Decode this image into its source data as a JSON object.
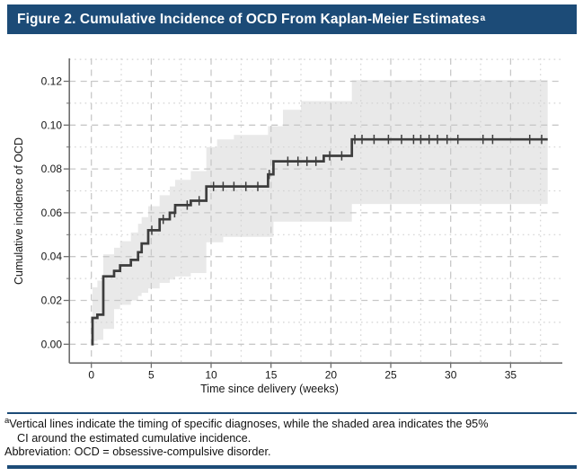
{
  "header": {
    "title": "Figure 2. Cumulative Incidence of OCD From Kaplan-Meier Estimates",
    "superscript": "a"
  },
  "colors": {
    "navy": "#1c4b77",
    "curve": "#3d3d3d",
    "band": "#e9e9e9",
    "grid_major": "#c8c8c8",
    "grid_minor": "#d3d3d3",
    "spine": "#6f6f6f",
    "tick_text": "#161616"
  },
  "chart_data": {
    "type": "line",
    "subtype": "kaplan-meier-step",
    "title": "Cumulative Incidence of OCD From Kaplan-Meier Estimates",
    "xlabel": "Time since delivery (weeks)",
    "ylabel": "Cumulative incidence of OCD",
    "xlim": [
      -1.8,
      39.3
    ],
    "ylim": [
      0,
      0.1305
    ],
    "grid": "dashed major, dotted minor",
    "x_ticks": [
      0,
      5,
      10,
      15,
      20,
      25,
      30,
      35
    ],
    "x_minor_ticks": [
      2.5,
      7.5,
      12.5,
      17.5,
      22.5,
      27.5,
      32.5,
      37.5
    ],
    "y_ticks": [
      0,
      0.02,
      0.04,
      0.06,
      0.08,
      0.1,
      0.12
    ],
    "y_tick_labels": [
      "0.00",
      "0.02",
      "0.04",
      "0.06",
      "0.08",
      "0.10",
      "0.12"
    ],
    "y_minor_ticks": [
      0.01,
      0.03,
      0.05,
      0.07,
      0.09,
      0.11,
      0.13
    ],
    "series": [
      {
        "name": "Kaplan-Meier cumulative incidence of OCD",
        "steps": [
          [
            0,
            0
          ],
          [
            0.1,
            0.012
          ],
          [
            0.5,
            0.0135
          ],
          [
            1,
            0.031
          ],
          [
            1.9,
            0.0335
          ],
          [
            2.4,
            0.036
          ],
          [
            3.3,
            0.0385
          ],
          [
            3.9,
            0.042
          ],
          [
            4.2,
            0.046
          ],
          [
            4.75,
            0.052
          ],
          [
            5.7,
            0.057
          ],
          [
            6.55,
            0.06
          ],
          [
            7,
            0.0635
          ],
          [
            8.3,
            0.0655
          ],
          [
            9.6,
            0.072
          ],
          [
            14.75,
            0.0775
          ],
          [
            15.2,
            0.0835
          ],
          [
            19.4,
            0.086
          ],
          [
            21.75,
            0.0935
          ],
          [
            38.1,
            0.0935
          ]
        ]
      }
    ],
    "ci_upper_steps": [
      [
        0.1,
        0.026
      ],
      [
        0.5,
        0.029
      ],
      [
        1,
        0.041
      ],
      [
        1.9,
        0.044
      ],
      [
        2.4,
        0.047
      ],
      [
        3.3,
        0.051
      ],
      [
        3.9,
        0.055
      ],
      [
        4.2,
        0.058
      ],
      [
        4.75,
        0.063
      ],
      [
        5.7,
        0.068
      ],
      [
        6.55,
        0.072
      ],
      [
        7,
        0.075
      ],
      [
        8.3,
        0.079
      ],
      [
        9.6,
        0.09
      ],
      [
        10.5,
        0.0935
      ],
      [
        11.9,
        0.0955
      ],
      [
        14.75,
        0.0995
      ],
      [
        16,
        0.107
      ],
      [
        17.5,
        0.111
      ],
      [
        21.75,
        0.1205
      ],
      [
        38.1,
        0.1205
      ]
    ],
    "ci_lower_steps": [
      [
        0.1,
        0.0015
      ],
      [
        0.5,
        0.002
      ],
      [
        1,
        0.007
      ],
      [
        1.9,
        0.016
      ],
      [
        2.4,
        0.018
      ],
      [
        3.3,
        0.02
      ],
      [
        3.9,
        0.022
      ],
      [
        4.2,
        0.0235
      ],
      [
        4.75,
        0.0255
      ],
      [
        5.7,
        0.028
      ],
      [
        6.55,
        0.0295
      ],
      [
        7,
        0.031
      ],
      [
        8.3,
        0.0325
      ],
      [
        9.6,
        0.0465
      ],
      [
        11,
        0.049
      ],
      [
        15.2,
        0.056
      ],
      [
        21.75,
        0.064
      ],
      [
        38.1,
        0.064
      ]
    ],
    "diagnosis_marks_weeks": [
      5.05,
      6.0,
      6.95,
      8.0,
      9.0,
      10.2,
      11.0,
      11.9,
      12.9,
      13.9,
      14.85,
      16.4,
      17.25,
      18.0,
      18.75,
      19.9,
      20.9,
      22.0,
      22.6,
      23.6,
      24.8,
      25.9,
      26.9,
      27.5,
      28.2,
      28.9,
      29.7,
      30.6,
      32.7,
      33.5,
      36.6,
      37.6
    ],
    "legend": "none"
  },
  "footnotes": {
    "marker": "a",
    "line1": "Vertical lines indicate the timing of specific diagnoses, while the shaded area indicates the 95%",
    "line2": "CI around the estimated cumulative incidence.",
    "abbreviation": "Abbreviation: OCD = obsessive-compulsive disorder."
  }
}
